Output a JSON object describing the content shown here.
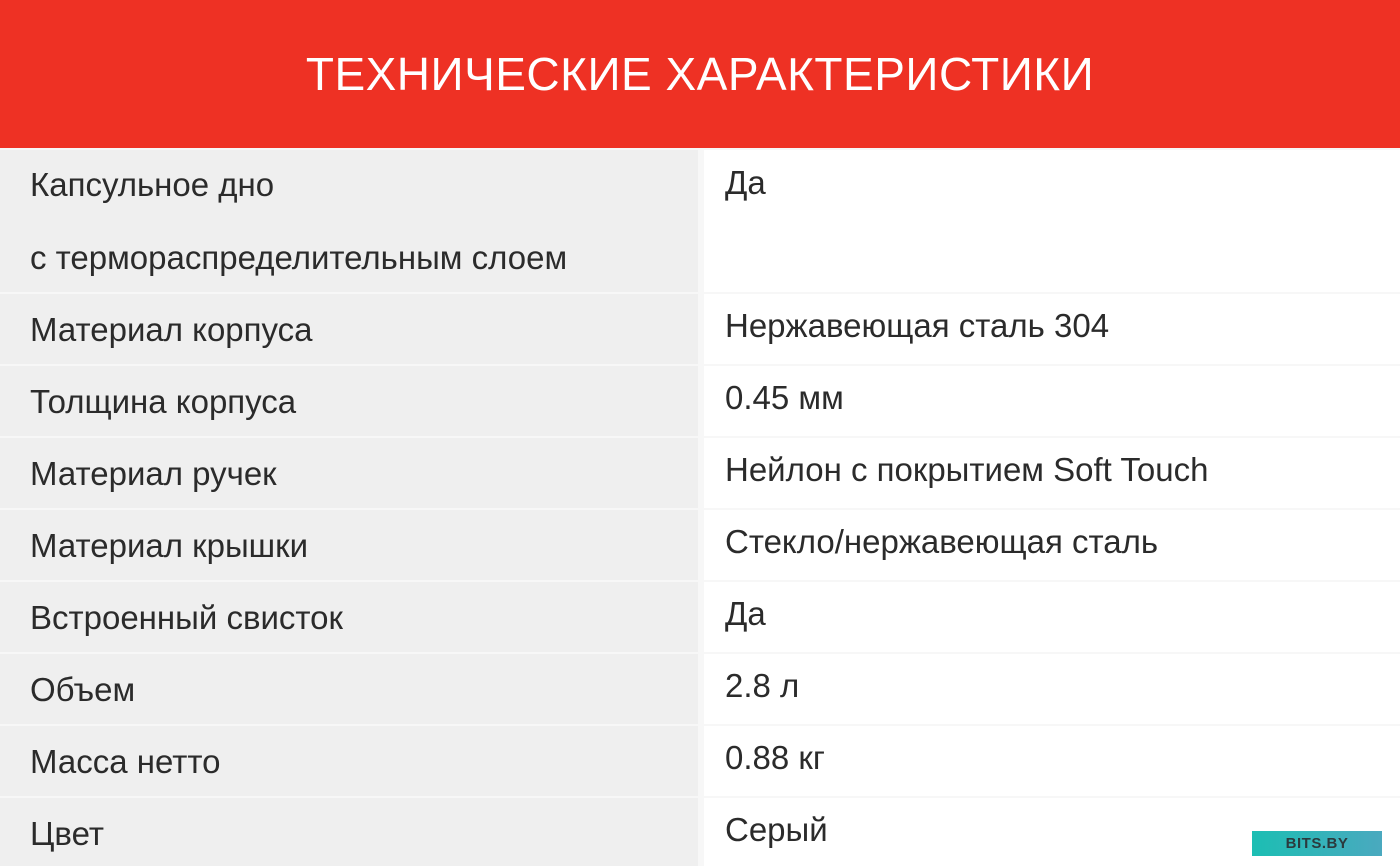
{
  "title": "ТЕХНИЧЕСКИЕ ХАРАКТЕРИСТИКИ",
  "rows": [
    {
      "label_line1": "Капсульное дно",
      "label_line2": "с терморaспределительным слоем",
      "value": "Да"
    },
    {
      "label": "Материал корпуса",
      "value": "Нержавеющая сталь 304"
    },
    {
      "label": "Толщина корпуса",
      "value": "0.45 мм"
    },
    {
      "label": "Материал ручек",
      "value": "Нейлон с покрытием Soft Touch"
    },
    {
      "label": "Материал крышки",
      "value": "Стекло/нержавеющая сталь"
    },
    {
      "label": "Встроенный свисток",
      "value": "Да"
    },
    {
      "label": "Объем",
      "value": "2.8 л"
    },
    {
      "label": "Масса нетто",
      "value": "0.88 кг"
    },
    {
      "label": "Цвет",
      "value": "Серый"
    }
  ],
  "watermark": "BITS.BY",
  "colors": {
    "header": "#ee3124",
    "label_cell": "#efefef",
    "value_cell": "#ffffff",
    "text": "#2b2b2b"
  }
}
